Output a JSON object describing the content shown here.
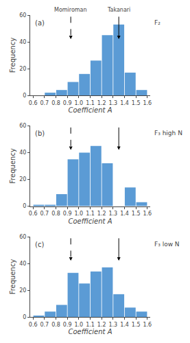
{
  "chart_data": [
    {
      "type": "bar",
      "panel_label": "(a)",
      "annotation": "F₂",
      "x": [
        0.65,
        0.75,
        0.85,
        0.95,
        1.05,
        1.15,
        1.25,
        1.35,
        1.45,
        1.55
      ],
      "values": [
        0,
        2,
        4,
        10,
        16,
        26,
        45,
        53,
        17,
        4
      ],
      "color": "#5b9bd5",
      "x_label": "Coefficient A",
      "y_label": "Frequency",
      "xlim": [
        0.575,
        1.625
      ],
      "xticks": [
        0.6,
        0.7,
        0.8,
        0.9,
        {
          "value": 1.0,
          "label": "1.0"
        },
        1.1,
        1.2,
        1.3,
        1.4,
        1.5,
        1.6
      ],
      "ylim": [
        0,
        60
      ],
      "yticks": [
        0,
        20,
        40,
        60
      ],
      "grid": false,
      "arrows": [
        {
          "x": 0.93,
          "line_style": "dashed",
          "label": "Momiroman"
        },
        {
          "x": 1.35,
          "line_style": "solid",
          "label": "Takanari"
        }
      ]
    },
    {
      "type": "bar",
      "panel_label": "(b)",
      "annotation": "F₃ high N",
      "x": [
        0.65,
        0.75,
        0.85,
        0.95,
        1.05,
        1.15,
        1.25,
        1.35,
        1.45,
        1.55
      ],
      "values": [
        1,
        1,
        9,
        35,
        40,
        45,
        32,
        0,
        14,
        3
      ],
      "color": "#5b9bd5",
      "x_label": "Coefficient A",
      "y_label": "Frequency",
      "xlim": [
        0.575,
        1.625
      ],
      "xticks": [
        0.6,
        0.7,
        0.8,
        0.9,
        {
          "value": 1.0,
          "label": "1.0"
        },
        1.1,
        1.2,
        1.3,
        1.4,
        1.5,
        1.6
      ],
      "ylim": [
        0,
        60
      ],
      "yticks": [
        0,
        20,
        40,
        60
      ],
      "grid": false,
      "arrows": [
        {
          "x": 0.93,
          "line_style": "dashed"
        },
        {
          "x": 1.35,
          "line_style": "solid"
        }
      ]
    },
    {
      "type": "bar",
      "panel_label": "(c)",
      "annotation": "F₃ low N",
      "x": [
        0.65,
        0.75,
        0.85,
        0.95,
        1.05,
        1.15,
        1.25,
        1.35,
        1.45,
        1.55
      ],
      "values": [
        1,
        4,
        9,
        33,
        25,
        34,
        37,
        17,
        7,
        4
      ],
      "color": "#5b9bd5",
      "x_label": "Coefficient A",
      "y_label": "Frequency",
      "xlim": [
        0.575,
        1.625
      ],
      "xticks": [
        0.6,
        0.7,
        0.8,
        0.9,
        {
          "value": 1.0,
          "label": "1.0"
        },
        1.1,
        1.2,
        1.3,
        1.4,
        1.5,
        1.6
      ],
      "ylim": [
        0,
        60
      ],
      "yticks": [
        0,
        20,
        40,
        60
      ],
      "grid": false,
      "arrows": [
        {
          "x": 0.93,
          "line_style": "dashed"
        },
        {
          "x": 1.35,
          "line_style": "solid"
        }
      ]
    }
  ]
}
